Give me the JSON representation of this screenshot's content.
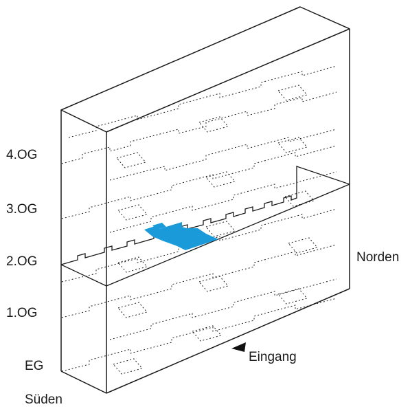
{
  "floors": [
    {
      "id": "eg",
      "label": "EG"
    },
    {
      "id": "og1",
      "label": "1.OG"
    },
    {
      "id": "og2",
      "label": "2.OG"
    },
    {
      "id": "og3",
      "label": "3.OG"
    },
    {
      "id": "og4",
      "label": "4.OG"
    }
  ],
  "compass": {
    "south": "Süden",
    "north": "Norden"
  },
  "entrance": {
    "label": "Eingang"
  },
  "highlight": {
    "floor": "2.OG",
    "color": "#1a9ad9"
  },
  "colors": {
    "lines": "#1a1a1a",
    "highlight": "#1a9ad9"
  }
}
